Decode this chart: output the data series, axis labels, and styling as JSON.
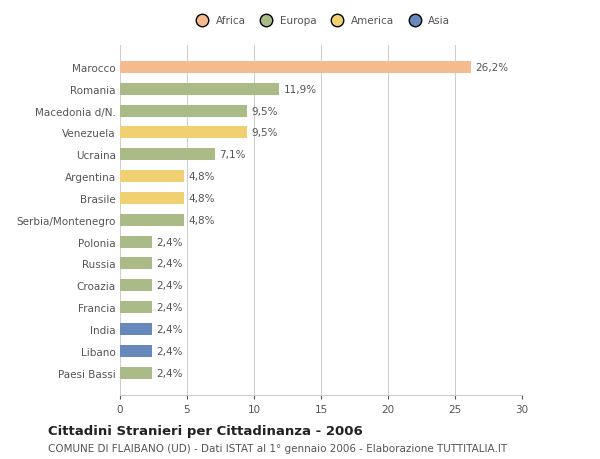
{
  "categories": [
    "Marocco",
    "Romania",
    "Macedonia d/N.",
    "Venezuela",
    "Ucraina",
    "Argentina",
    "Brasile",
    "Serbia/Montenegro",
    "Polonia",
    "Russia",
    "Croazia",
    "Francia",
    "India",
    "Libano",
    "Paesi Bassi"
  ],
  "values": [
    26.2,
    11.9,
    9.5,
    9.5,
    7.1,
    4.8,
    4.8,
    4.8,
    2.4,
    2.4,
    2.4,
    2.4,
    2.4,
    2.4,
    2.4
  ],
  "labels": [
    "26,2%",
    "11,9%",
    "9,5%",
    "9,5%",
    "7,1%",
    "4,8%",
    "4,8%",
    "4,8%",
    "2,4%",
    "2,4%",
    "2,4%",
    "2,4%",
    "2,4%",
    "2,4%",
    "2,4%"
  ],
  "colors": [
    "#F5BA8D",
    "#AABB88",
    "#AABB88",
    "#F0D070",
    "#AABB88",
    "#F0D070",
    "#F0D070",
    "#AABB88",
    "#AABB88",
    "#AABB88",
    "#AABB88",
    "#AABB88",
    "#6688BB",
    "#6688BB",
    "#AABB88"
  ],
  "continent_colors": {
    "Africa": "#F5BA8D",
    "Europa": "#AABB88",
    "America": "#F0D070",
    "Asia": "#6688BB"
  },
  "xlim": [
    0,
    30
  ],
  "xticks": [
    0,
    5,
    10,
    15,
    20,
    25,
    30
  ],
  "title": "Cittadini Stranieri per Cittadinanza - 2006",
  "subtitle": "COMUNE DI FLAIBANO (UD) - Dati ISTAT al 1° gennaio 2006 - Elaborazione TUTTITALIA.IT",
  "background_color": "#FFFFFF",
  "bar_height": 0.55,
  "label_fontsize": 7.5,
  "tick_fontsize": 7.5,
  "title_fontsize": 9.5,
  "subtitle_fontsize": 7.5
}
